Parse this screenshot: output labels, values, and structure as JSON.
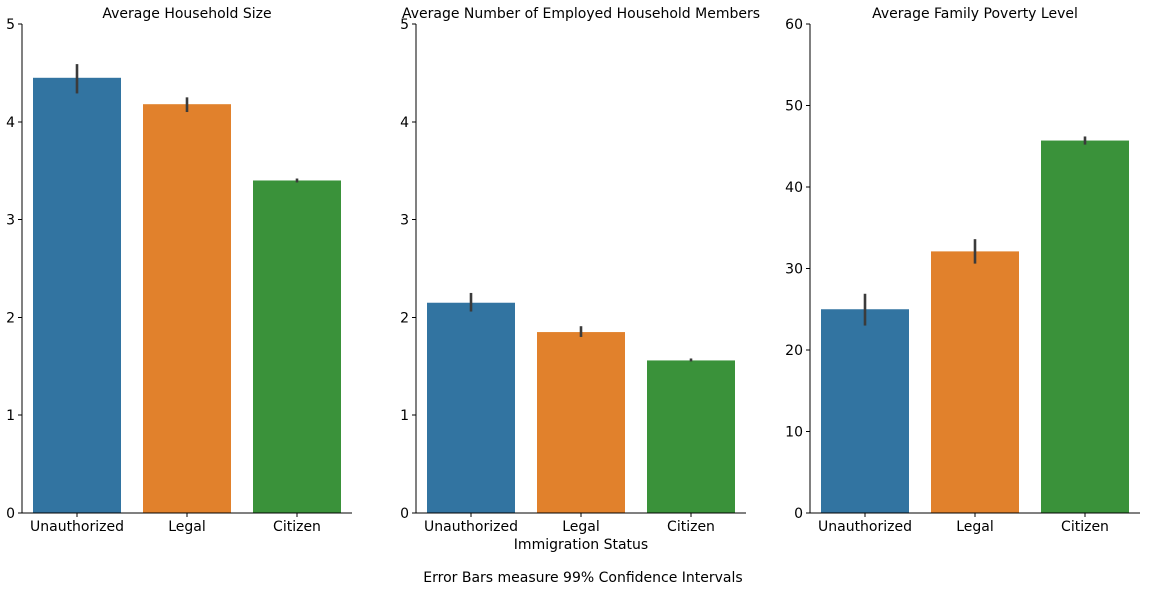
{
  "figure": {
    "footnote": "Error Bars measure 99% Confidence Intervals",
    "shared_xlabel": "Immigration Status"
  },
  "colors": {
    "Unauthorized": "#3274a1",
    "Legal": "#e1812c",
    "Citizen": "#3a923a",
    "error_bar": "#3b3b3b"
  },
  "chart_data": [
    {
      "type": "bar",
      "title": "Average Household Size",
      "xlabel": "",
      "ylabel": "",
      "categories": [
        "Unauthorized",
        "Legal",
        "Citizen"
      ],
      "values": [
        4.45,
        4.18,
        3.4
      ],
      "ci_low": [
        4.29,
        4.1,
        3.38
      ],
      "ci_high": [
        4.59,
        4.25,
        3.42
      ],
      "ylim": [
        0,
        5
      ],
      "yticks": [
        0,
        1,
        2,
        3,
        4,
        5
      ],
      "grid": false
    },
    {
      "type": "bar",
      "title": "Average Number of Employed Household Members",
      "xlabel": "Immigration Status",
      "ylabel": "",
      "categories": [
        "Unauthorized",
        "Legal",
        "Citizen"
      ],
      "values": [
        2.15,
        1.85,
        1.56
      ],
      "ci_low": [
        2.06,
        1.8,
        1.55
      ],
      "ci_high": [
        2.25,
        1.91,
        1.58
      ],
      "ylim": [
        0,
        5
      ],
      "yticks": [
        0,
        1,
        2,
        3,
        4,
        5
      ],
      "grid": false
    },
    {
      "type": "bar",
      "title": "Average Family Poverty Level",
      "xlabel": "",
      "ylabel": "",
      "categories": [
        "Unauthorized",
        "Legal",
        "Citizen"
      ],
      "values": [
        25.0,
        32.1,
        45.7
      ],
      "ci_low": [
        23.0,
        30.6,
        45.2
      ],
      "ci_high": [
        26.9,
        33.6,
        46.2
      ],
      "ylim": [
        0,
        60
      ],
      "yticks": [
        0,
        10,
        20,
        30,
        40,
        50,
        60
      ],
      "grid": false
    }
  ]
}
